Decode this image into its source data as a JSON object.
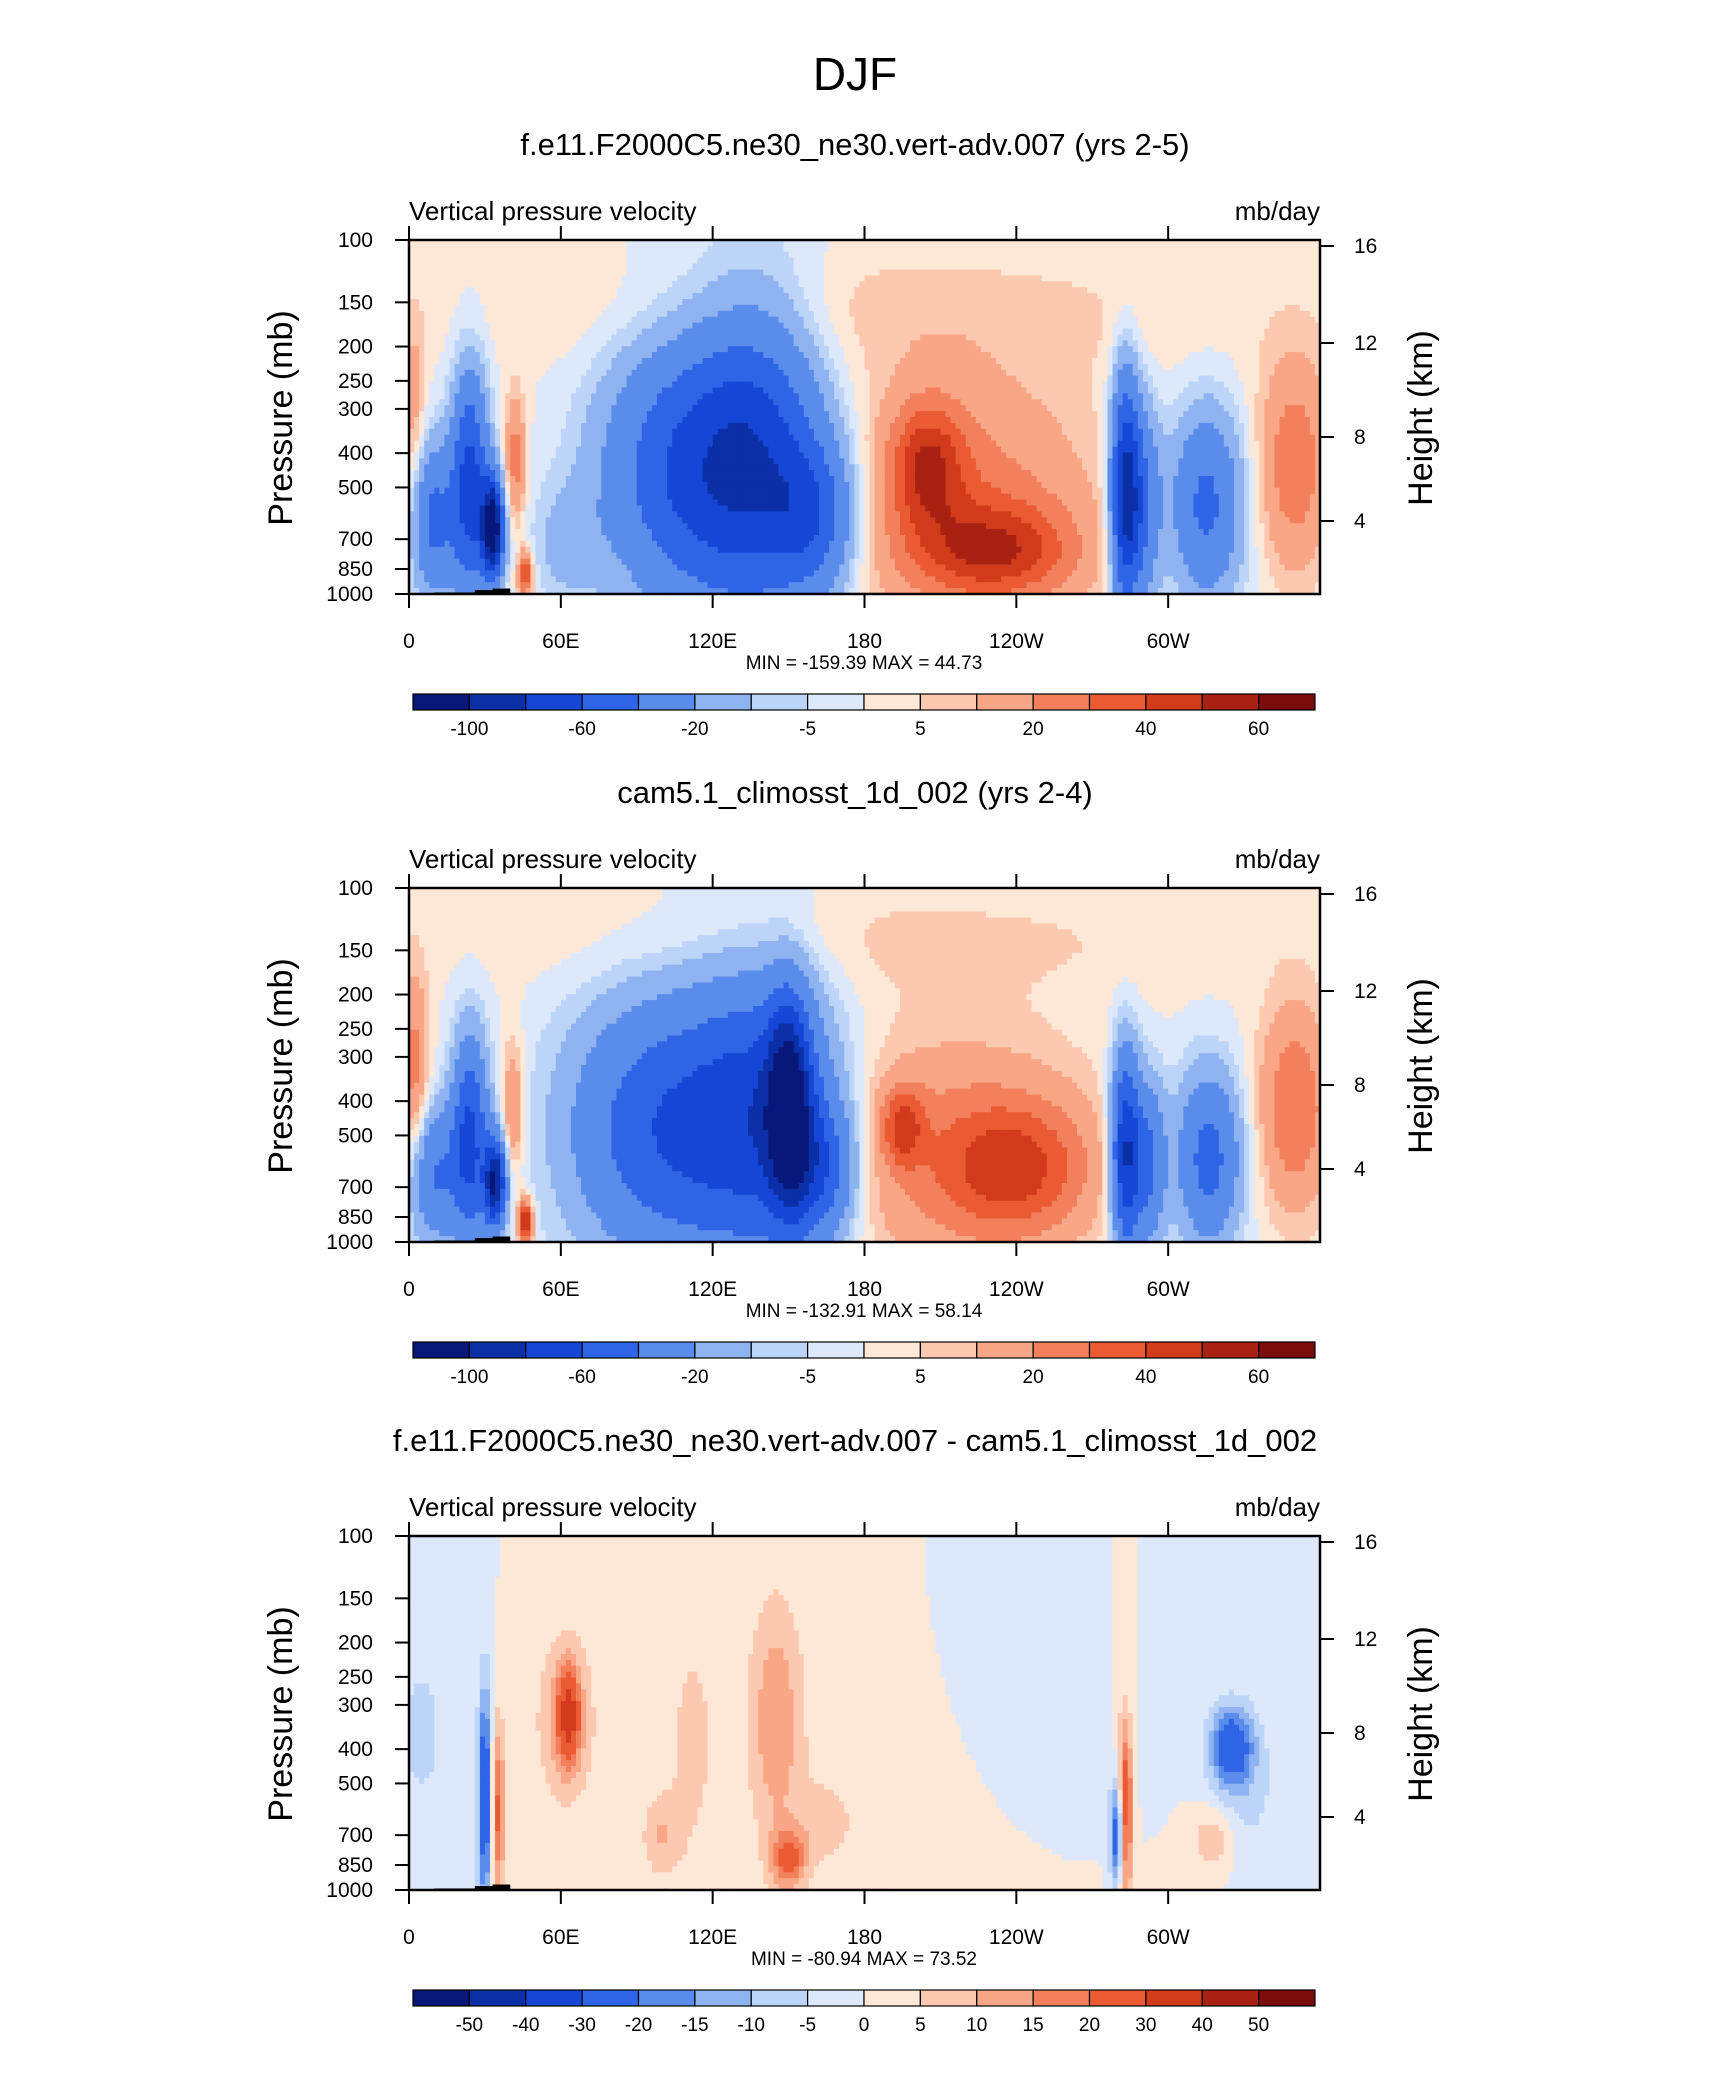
{
  "figure_title": "DJF",
  "chart_data": [
    {
      "type": "heatmap",
      "title": "f.e11.F2000C5.ne30_ne30.vert-adv.007 (yrs 2-5)",
      "left_label": "Vertical pressure velocity",
      "right_label": "mb/day",
      "ylabel": "Pressure (mb)",
      "ylabel_right": "Height (km)",
      "x_ticks": [
        "0",
        "60E",
        "120E",
        "180",
        "120W",
        "60W"
      ],
      "x_tick_lon": [
        0,
        60,
        120,
        180,
        240,
        300
      ],
      "xlim": [
        0,
        360
      ],
      "y_ticks": [
        "100",
        "150",
        "200",
        "250",
        "300",
        "400",
        "500",
        "700",
        "850",
        "1000"
      ],
      "y_tick_p": [
        100,
        150,
        200,
        250,
        300,
        400,
        500,
        700,
        850,
        1000
      ],
      "ylim": [
        1000,
        100
      ],
      "height_ticks": [
        "16",
        "12",
        "8",
        "4"
      ],
      "height_tick_km": [
        16,
        12,
        8,
        4
      ],
      "stats": "MIN = -159.39  MAX =  44.73",
      "min": -159.39,
      "max": 44.73,
      "colorbar_labels": [
        "-100",
        "-60",
        "-20",
        "-5",
        "5",
        "20",
        "40",
        "60"
      ],
      "colorbar_label_slots": [
        1,
        3,
        5,
        7,
        9,
        11,
        13,
        15
      ],
      "colorbar_colors": [
        "#08187a",
        "#0a2fa6",
        "#1646d6",
        "#2f64e6",
        "#5a8ceb",
        "#8fb3f0",
        "#bcd4f7",
        "#dde9fa",
        "#fde8d8",
        "#fcc9b0",
        "#f8a686",
        "#f3805c",
        "#ea5a33",
        "#d13a1b",
        "#a82112",
        "#7a0c0c"
      ],
      "field": [
        {
          "lon": 10,
          "p": 620,
          "lonw": 6,
          "pw": 350,
          "v": -45
        },
        {
          "lon": 24,
          "p": 500,
          "lonw": 5,
          "pw": 420,
          "v": -70
        },
        {
          "lon": 33,
          "p": 650,
          "lonw": 3,
          "pw": 220,
          "v": -120
        },
        {
          "lon": 42,
          "p": 420,
          "lonw": 3,
          "pw": 200,
          "v": 25
        },
        {
          "lon": 46,
          "p": 880,
          "lonw": 2,
          "pw": 90,
          "v": 45
        },
        {
          "lon": 62,
          "p": 720,
          "lonw": 10,
          "pw": 300,
          "v": -12
        },
        {
          "lon": 108,
          "p": 450,
          "lonw": 22,
          "pw": 450,
          "v": -55
        },
        {
          "lon": 138,
          "p": 420,
          "lonw": 18,
          "pw": 480,
          "v": -60
        },
        {
          "lon": 160,
          "p": 600,
          "lonw": 12,
          "pw": 350,
          "v": -45
        },
        {
          "lon": 220,
          "p": 550,
          "lonw": 35,
          "pw": 520,
          "v": 25
        },
        {
          "lon": 205,
          "p": 430,
          "lonw": 10,
          "pw": 200,
          "v": 35
        },
        {
          "lon": 232,
          "p": 760,
          "lonw": 22,
          "pw": 250,
          "v": 35
        },
        {
          "lon": 283,
          "p": 520,
          "lonw": 4,
          "pw": 450,
          "v": -85
        },
        {
          "lon": 290,
          "p": 560,
          "lonw": 5,
          "pw": 420,
          "v": -40
        },
        {
          "lon": 315,
          "p": 560,
          "lonw": 10,
          "pw": 400,
          "v": -45
        },
        {
          "lon": 350,
          "p": 430,
          "lonw": 10,
          "pw": 350,
          "v": 28
        },
        {
          "lon": 180,
          "p": 160,
          "lonw": 110,
          "pw": 80,
          "v": 7
        },
        {
          "lon": 2,
          "p": 300,
          "lonw": 3,
          "pw": 220,
          "v": 14
        }
      ]
    },
    {
      "type": "heatmap",
      "title": "cam5.1_climosst_1d_002 (yrs 2-4)",
      "left_label": "Vertical pressure velocity",
      "right_label": "mb/day",
      "ylabel": "Pressure (mb)",
      "ylabel_right": "Height (km)",
      "x_ticks": [
        "0",
        "60E",
        "120E",
        "180",
        "120W",
        "60W"
      ],
      "x_tick_lon": [
        0,
        60,
        120,
        180,
        240,
        300
      ],
      "xlim": [
        0,
        360
      ],
      "y_ticks": [
        "100",
        "150",
        "200",
        "250",
        "300",
        "400",
        "500",
        "700",
        "850",
        "1000"
      ],
      "y_tick_p": [
        100,
        150,
        200,
        250,
        300,
        400,
        500,
        700,
        850,
        1000
      ],
      "ylim": [
        1000,
        100
      ],
      "height_ticks": [
        "16",
        "12",
        "8",
        "4"
      ],
      "height_tick_km": [
        16,
        12,
        8,
        4
      ],
      "stats": "MIN = -132.91  MAX =  58.14",
      "min": -132.91,
      "max": 58.14,
      "colorbar_labels": [
        "-100",
        "-60",
        "-20",
        "-5",
        "5",
        "20",
        "40",
        "60"
      ],
      "colorbar_label_slots": [
        1,
        3,
        5,
        7,
        9,
        11,
        13,
        15
      ],
      "colorbar_colors": [
        "#08187a",
        "#0a2fa6",
        "#1646d6",
        "#2f64e6",
        "#5a8ceb",
        "#8fb3f0",
        "#bcd4f7",
        "#dde9fa",
        "#fde8d8",
        "#fcc9b0",
        "#f8a686",
        "#f3805c",
        "#ea5a33",
        "#d13a1b",
        "#a82112",
        "#7a0c0c"
      ],
      "field": [
        {
          "lon": 10,
          "p": 650,
          "lonw": 7,
          "pw": 330,
          "v": -40
        },
        {
          "lon": 24,
          "p": 520,
          "lonw": 5,
          "pw": 400,
          "v": -65
        },
        {
          "lon": 34,
          "p": 680,
          "lonw": 3,
          "pw": 200,
          "v": -100
        },
        {
          "lon": 41,
          "p": 420,
          "lonw": 3,
          "pw": 220,
          "v": 22
        },
        {
          "lon": 46,
          "p": 880,
          "lonw": 2,
          "pw": 90,
          "v": 55
        },
        {
          "lon": 2,
          "p": 330,
          "lonw": 4,
          "pw": 250,
          "v": 25
        },
        {
          "lon": 100,
          "p": 480,
          "lonw": 25,
          "pw": 470,
          "v": -55
        },
        {
          "lon": 140,
          "p": 450,
          "lonw": 20,
          "pw": 480,
          "v": -60
        },
        {
          "lon": 150,
          "p": 400,
          "lonw": 6,
          "pw": 300,
          "v": -85
        },
        {
          "lon": 162,
          "p": 620,
          "lonw": 10,
          "pw": 320,
          "v": -45
        },
        {
          "lon": 215,
          "p": 560,
          "lonw": 38,
          "pw": 520,
          "v": 22
        },
        {
          "lon": 240,
          "p": 620,
          "lonw": 20,
          "pw": 300,
          "v": 32
        },
        {
          "lon": 195,
          "p": 470,
          "lonw": 6,
          "pw": 120,
          "v": 30
        },
        {
          "lon": 283,
          "p": 560,
          "lonw": 4,
          "pw": 420,
          "v": -80
        },
        {
          "lon": 292,
          "p": 600,
          "lonw": 5,
          "pw": 380,
          "v": -45
        },
        {
          "lon": 316,
          "p": 580,
          "lonw": 9,
          "pw": 380,
          "v": -48
        },
        {
          "lon": 350,
          "p": 420,
          "lonw": 10,
          "pw": 330,
          "v": 30
        },
        {
          "lon": 185,
          "p": 140,
          "lonw": 110,
          "pw": 60,
          "v": 6
        }
      ]
    },
    {
      "type": "heatmap",
      "title": "f.e11.F2000C5.ne30_ne30.vert-adv.007 - cam5.1_climosst_1d_002",
      "left_label": "Vertical pressure velocity",
      "right_label": "mb/day",
      "ylabel": "Pressure (mb)",
      "ylabel_right": "Height (km)",
      "x_ticks": [
        "0",
        "60E",
        "120E",
        "180",
        "120W",
        "60W"
      ],
      "x_tick_lon": [
        0,
        60,
        120,
        180,
        240,
        300
      ],
      "xlim": [
        0,
        360
      ],
      "y_ticks": [
        "100",
        "150",
        "200",
        "250",
        "300",
        "400",
        "500",
        "700",
        "850",
        "1000"
      ],
      "y_tick_p": [
        100,
        150,
        200,
        250,
        300,
        400,
        500,
        700,
        850,
        1000
      ],
      "ylim": [
        1000,
        100
      ],
      "height_ticks": [
        "16",
        "12",
        "8",
        "4"
      ],
      "height_tick_km": [
        16,
        12,
        8,
        4
      ],
      "stats": "MIN = -80.94  MAX =  73.52",
      "min": -80.94,
      "max": 73.52,
      "colorbar_labels": [
        "-50",
        "-40",
        "-30",
        "-20",
        "-15",
        "-10",
        "-5",
        "0",
        "5",
        "10",
        "15",
        "20",
        "30",
        "40",
        "50"
      ],
      "colorbar_label_slots": [
        1,
        2,
        3,
        4,
        5,
        6,
        7,
        8,
        9,
        10,
        11,
        12,
        13,
        14,
        15
      ],
      "colorbar_colors": [
        "#08187a",
        "#0a2fa6",
        "#1646d6",
        "#2f64e6",
        "#5a8ceb",
        "#8fb3f0",
        "#bcd4f7",
        "#dde9fa",
        "#fde8d8",
        "#fcc9b0",
        "#f8a686",
        "#f3805c",
        "#ea5a33",
        "#d13a1b",
        "#a82112",
        "#7a0c0c"
      ],
      "field": [
        {
          "lon": 30,
          "p": 550,
          "lonw": 2,
          "pw": 480,
          "v": -30
        },
        {
          "lon": 35,
          "p": 600,
          "lonw": 2,
          "pw": 420,
          "v": 22
        },
        {
          "lon": 5,
          "p": 360,
          "lonw": 6,
          "pw": 200,
          "v": -8
        },
        {
          "lon": 62,
          "p": 330,
          "lonw": 8,
          "pw": 220,
          "v": 13
        },
        {
          "lon": 63,
          "p": 320,
          "lonw": 3,
          "pw": 100,
          "v": 25
        },
        {
          "lon": 100,
          "p": 700,
          "lonw": 6,
          "pw": 220,
          "v": 10
        },
        {
          "lon": 112,
          "p": 380,
          "lonw": 6,
          "pw": 300,
          "v": 8
        },
        {
          "lon": 145,
          "p": 330,
          "lonw": 8,
          "pw": 320,
          "v": 14
        },
        {
          "lon": 150,
          "p": 820,
          "lonw": 5,
          "pw": 150,
          "v": 20
        },
        {
          "lon": 165,
          "p": 650,
          "lonw": 8,
          "pw": 220,
          "v": 6
        },
        {
          "lon": 283,
          "p": 600,
          "lonw": 2,
          "pw": 420,
          "v": 30
        },
        {
          "lon": 280,
          "p": 700,
          "lonw": 2,
          "pw": 250,
          "v": -30
        },
        {
          "lon": 325,
          "p": 390,
          "lonw": 6,
          "pw": 100,
          "v": -25
        },
        {
          "lon": 318,
          "p": 720,
          "lonw": 6,
          "pw": 150,
          "v": 10
        },
        {
          "lon": 330,
          "p": 520,
          "lonw": 10,
          "pw": 300,
          "v": -7
        },
        {
          "lon": 220,
          "p": 600,
          "lonw": 40,
          "pw": 400,
          "v": 3
        },
        {
          "lon": 250,
          "p": 480,
          "lonw": 25,
          "pw": 300,
          "v": -4
        }
      ]
    }
  ]
}
